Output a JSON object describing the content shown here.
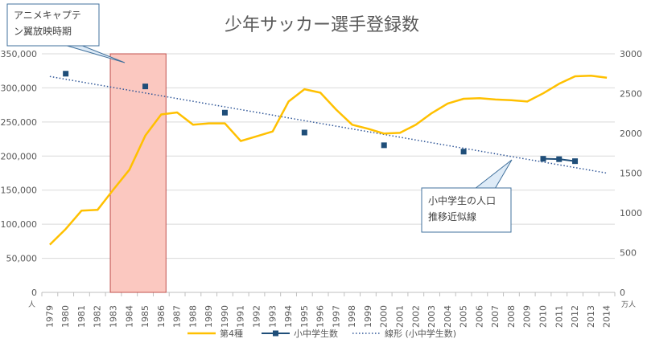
{
  "chart_data": {
    "type": "line",
    "title": "少年サッカー選手登録数",
    "y_left_unit": "人",
    "y_right_unit": "万人",
    "x": [
      "1979",
      "1980",
      "1981",
      "1982",
      "1983",
      "1984",
      "1985",
      "1986",
      "1987",
      "1988",
      "1989",
      "1990",
      "1991",
      "1992",
      "1993",
      "1994",
      "1995",
      "1996",
      "1997",
      "1998",
      "1999",
      "2000",
      "2001",
      "2002",
      "2003",
      "2004",
      "2005",
      "2006",
      "2007",
      "2008",
      "2009",
      "2010",
      "2011",
      "2012",
      "2013",
      "2014"
    ],
    "y_left_ticks": [
      "0",
      "50,000",
      "100,000",
      "150,000",
      "200,000",
      "250,000",
      "300,000",
      "350,000"
    ],
    "y_left_range": [
      0,
      350000
    ],
    "y_right_ticks": [
      "0",
      "500",
      "1000",
      "1500",
      "2000",
      "2500",
      "3000"
    ],
    "y_right_range": [
      0,
      3000
    ],
    "series": [
      {
        "name": "第4種",
        "axis": "left",
        "color": "#FFC000",
        "values": [
          70000,
          93000,
          120000,
          121000,
          151000,
          180000,
          230000,
          261000,
          264000,
          246000,
          248000,
          248000,
          222000,
          229000,
          236000,
          280000,
          298000,
          293000,
          268000,
          246000,
          240000,
          233000,
          234000,
          246000,
          263000,
          277000,
          284000,
          285000,
          283000,
          282000,
          280000,
          292000,
          306000,
          317000,
          318000,
          315000
        ]
      },
      {
        "name": "小中学生数",
        "axis": "right",
        "color": "#1F4E79",
        "x": [
          "1980",
          "1985",
          "1990",
          "1995",
          "2000",
          "2005",
          "2010",
          "2011",
          "2012"
        ],
        "values": [
          2750,
          2590,
          2260,
          2010,
          1850,
          1770,
          1680,
          1675,
          1650
        ]
      }
    ],
    "trendline": {
      "name": "線形 (小中学生数)",
      "axis": "right",
      "color": "#2E5597",
      "start_value": 2715,
      "end_value": 1500
    },
    "shaded_band": {
      "x_start": "1983",
      "x_end": "1986",
      "fill": "#FBC8C0",
      "stroke": "#C0504D"
    },
    "callouts": [
      {
        "id": "anime",
        "lines": [
          "アニメキャプテ",
          "ン翼放映時期"
        ]
      },
      {
        "id": "trend",
        "lines": [
          "小中学生の人口",
          "推移近似線"
        ]
      }
    ],
    "legend": {
      "position": "bottom",
      "items": [
        "第4種",
        "小中学生数",
        "線形 (小中学生数)"
      ]
    },
    "grid": true
  }
}
